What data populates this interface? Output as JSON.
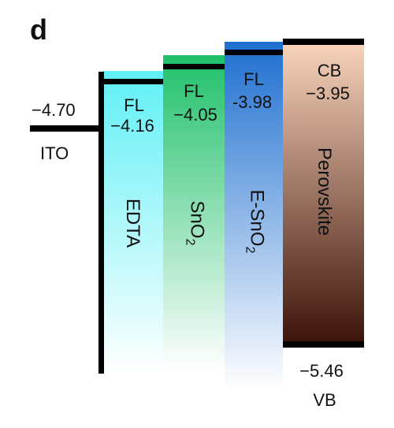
{
  "panel_label": "d",
  "ito": {
    "name": "ITO",
    "value": "−4.70"
  },
  "edta": {
    "name": "EDTA",
    "fl_label": "FL",
    "fl_value": "−4.16",
    "color_top": "#5ff0f5",
    "color_bottom": "#ffffff"
  },
  "sno2": {
    "name": "SnO",
    "sub": "2",
    "fl_label": "FL",
    "fl_value": "−4.05",
    "color_top": "#1fc06a",
    "color_bottom": "#ffffff"
  },
  "esno2": {
    "name": "E-SnO",
    "sub": "2",
    "fl_label": "FL",
    "fl_value": "-3.98",
    "color_top": "#1e6fd0",
    "color_bottom": "#ffffff"
  },
  "perovskite": {
    "name": "Perovskite",
    "cb_label": "CB",
    "cb_value": "−3.95",
    "vb_label": "VB",
    "vb_value": "−5.46",
    "color_top": "#fbd6bd",
    "color_bottom": "#3b1208"
  }
}
